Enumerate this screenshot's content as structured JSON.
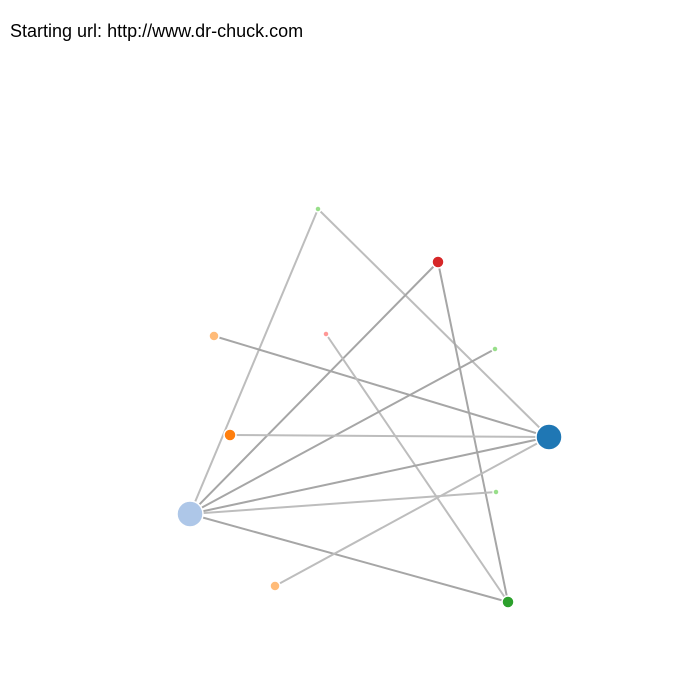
{
  "header": {
    "label": "Starting url:",
    "url": "http://www.dr-chuck.com"
  },
  "graph": {
    "nodes": [
      {
        "id": "n_blue_dark",
        "color": "#1f77b4",
        "size": "large"
      },
      {
        "id": "n_blue_light",
        "color": "#aec7e8",
        "size": "large"
      },
      {
        "id": "n_orange",
        "color": "#ff7f0e",
        "size": "medium"
      },
      {
        "id": "n_peach_1",
        "color": "#ffbb78",
        "size": "small"
      },
      {
        "id": "n_peach_2",
        "color": "#ffbb78",
        "size": "small"
      },
      {
        "id": "n_red",
        "color": "#d62728",
        "size": "medium"
      },
      {
        "id": "n_green_dark",
        "color": "#2ca02c",
        "size": "medium"
      },
      {
        "id": "n_green_light_1",
        "color": "#98df8a",
        "size": "tiny"
      },
      {
        "id": "n_green_light_2",
        "color": "#98df8a",
        "size": "tiny"
      },
      {
        "id": "n_green_light_3",
        "color": "#98df8a",
        "size": "tiny"
      },
      {
        "id": "n_pink",
        "color": "#ff9896",
        "size": "tiny"
      }
    ],
    "links": [
      {
        "source": "n_green_light_1",
        "target": "n_blue_light",
        "tone": "light"
      },
      {
        "source": "n_green_light_1",
        "target": "n_blue_dark",
        "tone": "light"
      },
      {
        "source": "n_red",
        "target": "n_blue_light",
        "tone": "dark"
      },
      {
        "source": "n_red",
        "target": "n_green_dark",
        "tone": "dark"
      },
      {
        "source": "n_peach_1",
        "target": "n_blue_dark",
        "tone": "dark"
      },
      {
        "source": "n_pink",
        "target": "n_green_dark",
        "tone": "light"
      },
      {
        "source": "n_green_light_2",
        "target": "n_blue_light",
        "tone": "dark"
      },
      {
        "source": "n_orange",
        "target": "n_blue_dark",
        "tone": "light"
      },
      {
        "source": "n_blue_light",
        "target": "n_blue_dark",
        "tone": "dark"
      },
      {
        "source": "n_green_light_3",
        "target": "n_blue_light",
        "tone": "light"
      },
      {
        "source": "n_blue_light",
        "target": "n_green_dark",
        "tone": "dark"
      },
      {
        "source": "n_peach_2",
        "target": "n_blue_dark",
        "tone": "light"
      }
    ],
    "tones": {
      "light": "#bdbdbd",
      "dark": "#a6a6a6"
    }
  }
}
